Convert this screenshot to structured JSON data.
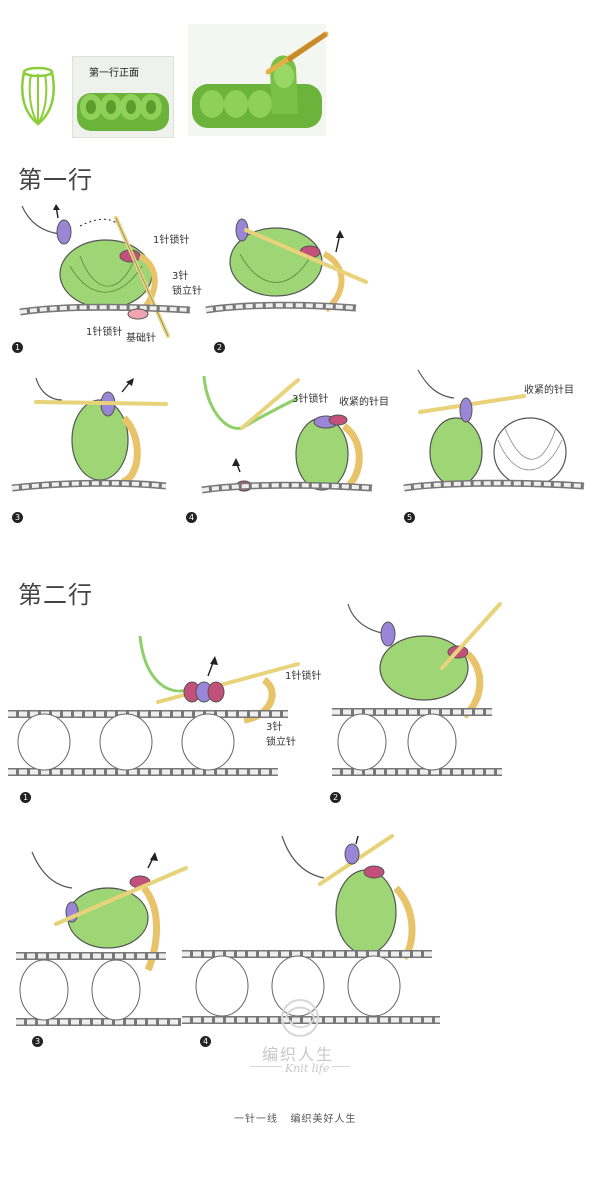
{
  "header": {
    "stitch_icon": "puff-stitch-icon",
    "photo_caption": "第一行正面"
  },
  "row1": {
    "title": "第一行",
    "step1": {
      "num": "1",
      "label_ch1": "1针锁针",
      "label_ch3": "3针\n锁立针",
      "label_ch1b": "1针锁针",
      "label_base": "基础针"
    },
    "step2": {
      "num": "2"
    },
    "step3": {
      "num": "3"
    },
    "step4": {
      "num": "4",
      "label_ch3": "3针锁针",
      "label_tighten": "收紧的针目"
    },
    "step5": {
      "num": "5",
      "label_tighten": "收紧的针目"
    }
  },
  "row2": {
    "title": "第二行",
    "step1": {
      "num": "1",
      "label_ch1": "1针锁针",
      "label_ch3": "3针\n锁立针"
    },
    "step2": {
      "num": "2"
    },
    "step3": {
      "num": "3"
    },
    "step4": {
      "num": "4"
    }
  },
  "watermark": {
    "cn": "编织人生",
    "en": "Knit life"
  },
  "footer": {
    "slogan": "一针一线   编织美好人生"
  },
  "colors": {
    "yarn_green": "#8fcf6a",
    "chain_yellow": "#e8c36a",
    "accent_purple": "#9a86d6",
    "accent_magenta": "#c2507a",
    "hook": "#e8d27a",
    "outline": "#555555"
  }
}
